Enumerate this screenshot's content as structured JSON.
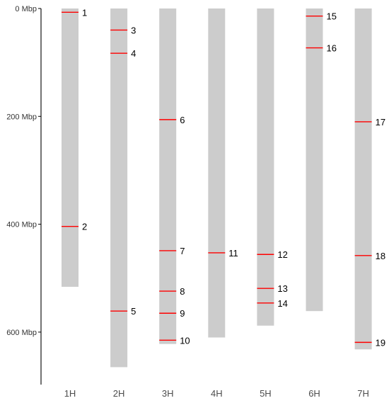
{
  "chart_data": {
    "type": "chromosome-map",
    "y_axis": {
      "unit": "Mbp",
      "range": [
        0,
        700
      ],
      "reversed": true,
      "ticks": [
        {
          "value": 0,
          "label": "0 Mbp"
        },
        {
          "value": 200,
          "label": "200 Mbp"
        },
        {
          "value": 400,
          "label": "400 Mbp"
        },
        {
          "value": 600,
          "label": "600 Mbp"
        }
      ]
    },
    "chromosomes": [
      {
        "name": "1H",
        "length": 516
      },
      {
        "name": "2H",
        "length": 665
      },
      {
        "name": "3H",
        "length": 622
      },
      {
        "name": "4H",
        "length": 610
      },
      {
        "name": "5H",
        "length": 588
      },
      {
        "name": "6H",
        "length": 561
      },
      {
        "name": "7H",
        "length": 632
      }
    ],
    "markers": [
      {
        "label": "1",
        "chromosome": "1H",
        "position": 7
      },
      {
        "label": "2",
        "chromosome": "1H",
        "position": 404
      },
      {
        "label": "3",
        "chromosome": "2H",
        "position": 40
      },
      {
        "label": "4",
        "chromosome": "2H",
        "position": 83
      },
      {
        "label": "5",
        "chromosome": "2H",
        "position": 561
      },
      {
        "label": "6",
        "chromosome": "3H",
        "position": 206
      },
      {
        "label": "7",
        "chromosome": "3H",
        "position": 449
      },
      {
        "label": "8",
        "chromosome": "3H",
        "position": 524
      },
      {
        "label": "9",
        "chromosome": "3H",
        "position": 565
      },
      {
        "label": "10",
        "chromosome": "3H",
        "position": 615
      },
      {
        "label": "11",
        "chromosome": "4H",
        "position": 453
      },
      {
        "label": "12",
        "chromosome": "5H",
        "position": 456
      },
      {
        "label": "13",
        "chromosome": "5H",
        "position": 519
      },
      {
        "label": "14",
        "chromosome": "5H",
        "position": 546
      },
      {
        "label": "15",
        "chromosome": "6H",
        "position": 14
      },
      {
        "label": "16",
        "chromosome": "6H",
        "position": 73
      },
      {
        "label": "17",
        "chromosome": "7H",
        "position": 210
      },
      {
        "label": "18",
        "chromosome": "7H",
        "position": 458
      },
      {
        "label": "19",
        "chromosome": "7H",
        "position": 619
      }
    ],
    "colors": {
      "chromosome": "#cccccc",
      "marker": "#ff0000",
      "axis": "#000000"
    }
  }
}
